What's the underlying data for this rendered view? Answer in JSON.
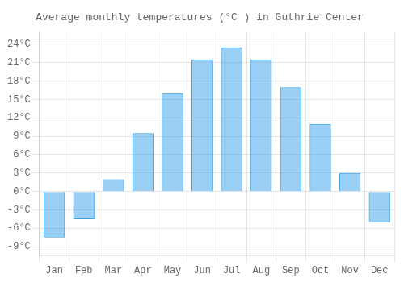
{
  "chart_data": {
    "type": "bar",
    "title": "Average monthly temperatures (°C ) in Guthrie Center",
    "categories": [
      "Jan",
      "Feb",
      "Mar",
      "Apr",
      "May",
      "Jun",
      "Jul",
      "Aug",
      "Sep",
      "Oct",
      "Nov",
      "Dec"
    ],
    "values": [
      -7.5,
      -4.5,
      2.0,
      9.5,
      16.0,
      21.5,
      23.5,
      21.5,
      17.0,
      11.0,
      3.0,
      -5.0
    ],
    "ylim": [
      -10.5,
      26
    ],
    "yticks": [
      {
        "value": -9,
        "label": "-9°C"
      },
      {
        "value": -6,
        "label": "-6°C"
      },
      {
        "value": -3,
        "label": "-3°C"
      },
      {
        "value": 0,
        "label": "0°C"
      },
      {
        "value": 3,
        "label": "3°C"
      },
      {
        "value": 6,
        "label": "6°C"
      },
      {
        "value": 9,
        "label": "9°C"
      },
      {
        "value": 12,
        "label": "12°C"
      },
      {
        "value": 15,
        "label": "15°C"
      },
      {
        "value": 18,
        "label": "18°C"
      },
      {
        "value": 21,
        "label": "21°C"
      },
      {
        "value": 24,
        "label": "24°C"
      }
    ],
    "grid": true
  }
}
